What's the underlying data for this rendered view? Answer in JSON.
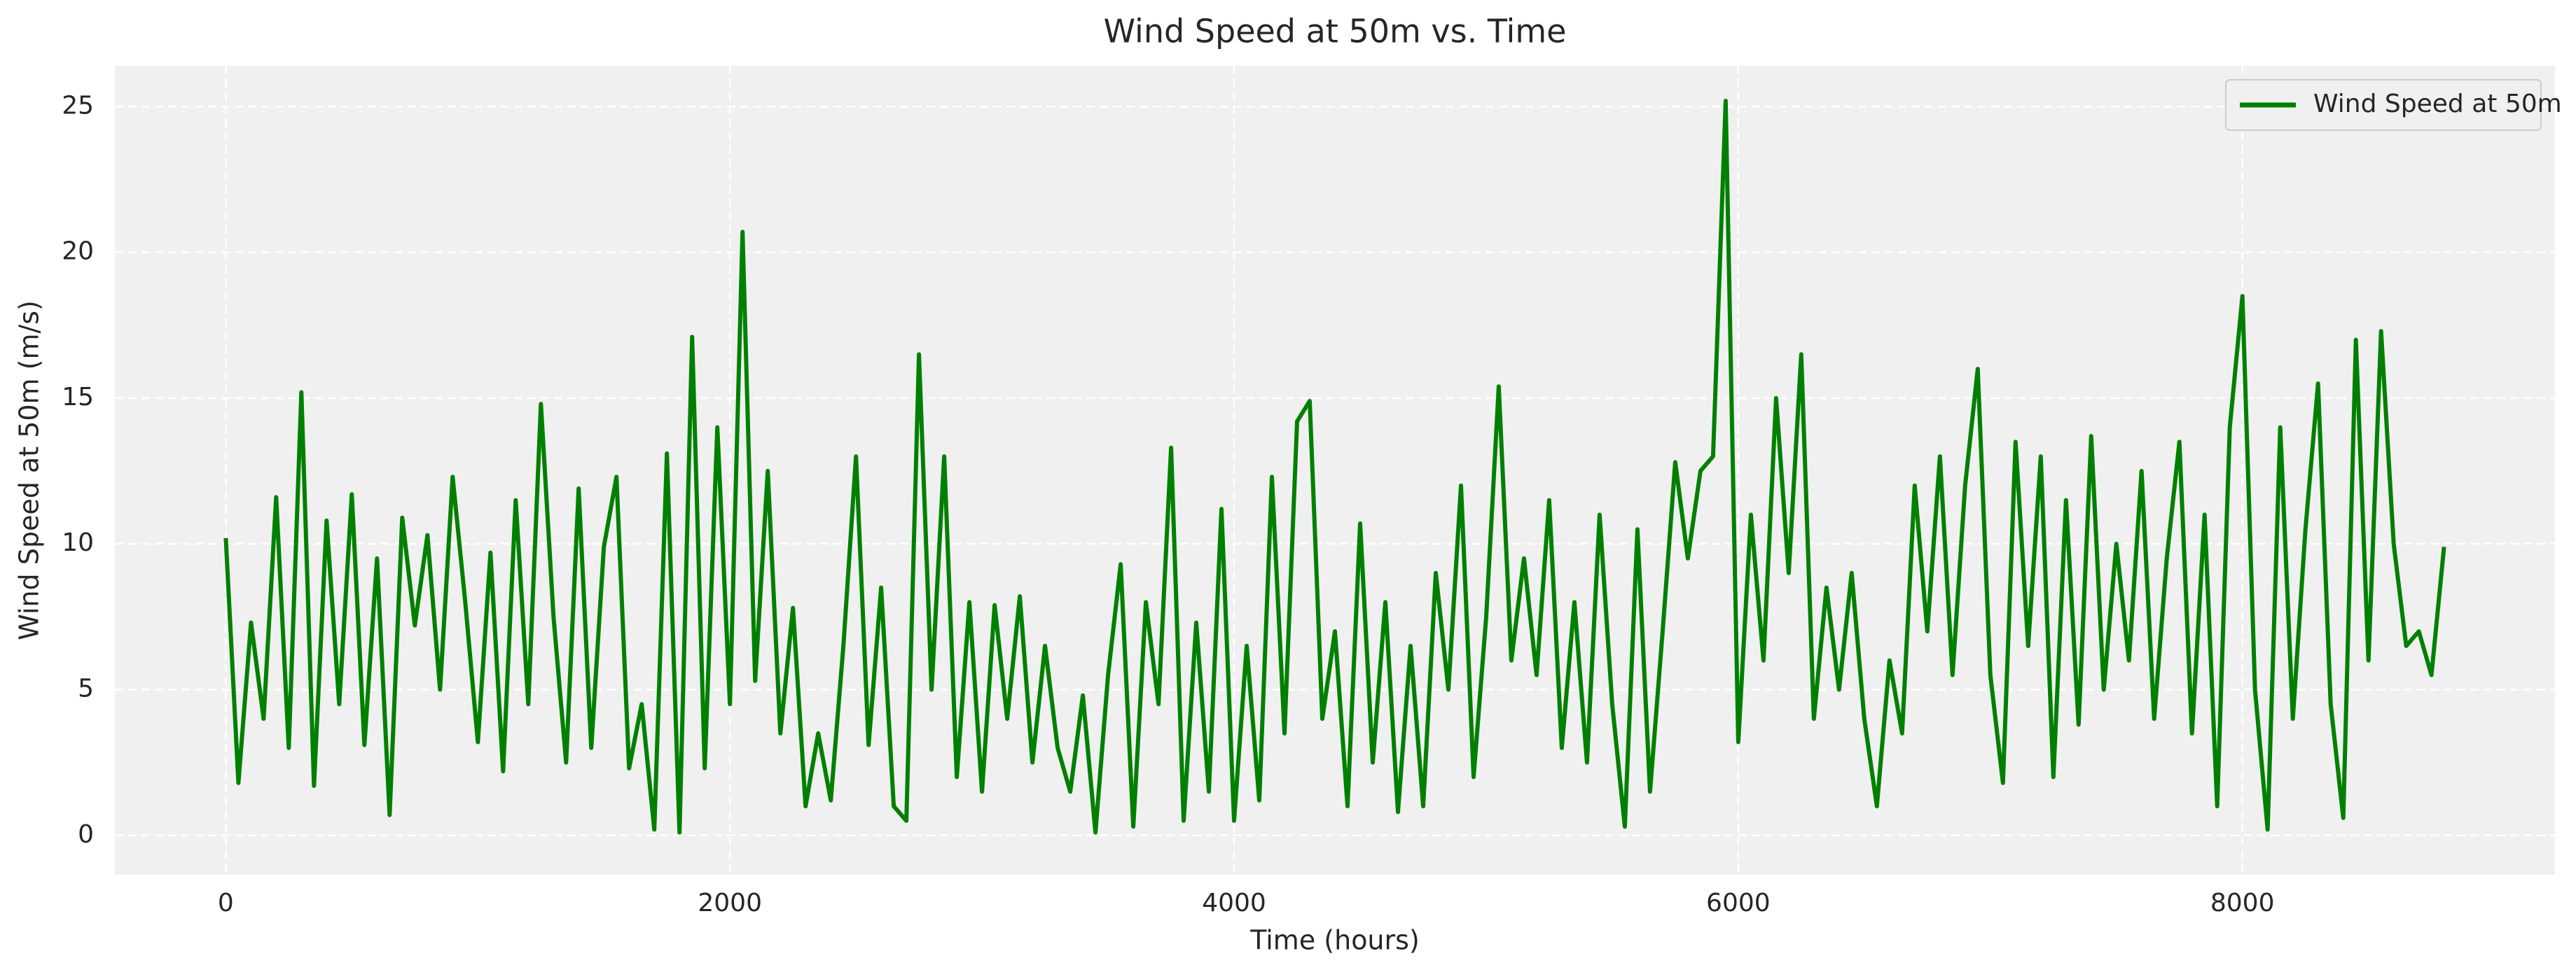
{
  "chart_data": {
    "type": "line",
    "title": "Wind Speed at 50m vs. Time",
    "xlabel": "Time (hours)",
    "ylabel": "Wind Speed at 50m (m/s)",
    "x": [
      0,
      50,
      100,
      150,
      200,
      250,
      300,
      350,
      400,
      450,
      500,
      550,
      600,
      650,
      700,
      750,
      800,
      850,
      900,
      950,
      1000,
      1050,
      1100,
      1150,
      1200,
      1250,
      1300,
      1350,
      1400,
      1450,
      1500,
      1550,
      1600,
      1650,
      1700,
      1750,
      1800,
      1850,
      1900,
      1950,
      2000,
      2050,
      2100,
      2150,
      2200,
      2250,
      2300,
      2350,
      2400,
      2450,
      2500,
      2550,
      2600,
      2650,
      2700,
      2750,
      2800,
      2850,
      2900,
      2950,
      3000,
      3050,
      3100,
      3150,
      3200,
      3250,
      3300,
      3350,
      3400,
      3450,
      3500,
      3550,
      3600,
      3650,
      3700,
      3750,
      3800,
      3850,
      3900,
      3950,
      4000,
      4050,
      4100,
      4150,
      4200,
      4250,
      4300,
      4350,
      4400,
      4450,
      4500,
      4550,
      4600,
      4650,
      4700,
      4750,
      4800,
      4850,
      4900,
      4950,
      5000,
      5050,
      5100,
      5150,
      5200,
      5250,
      5300,
      5350,
      5400,
      5450,
      5500,
      5550,
      5600,
      5650,
      5700,
      5750,
      5800,
      5850,
      5900,
      5950,
      6000,
      6050,
      6100,
      6150,
      6200,
      6250,
      6300,
      6350,
      6400,
      6450,
      6500,
      6550,
      6600,
      6650,
      6700,
      6750,
      6800,
      6850,
      6900,
      6950,
      7000,
      7050,
      7100,
      7150,
      7200,
      7250,
      7300,
      7350,
      7400,
      7450,
      7500,
      7550,
      7600,
      7650,
      7700,
      7750,
      7800,
      7850,
      7900,
      7950,
      8000,
      8050,
      8100,
      8150,
      8200,
      8250,
      8300,
      8350,
      8400,
      8450,
      8500,
      8550,
      8600,
      8650,
      8700,
      8750,
      8800
    ],
    "series": [
      {
        "name": "Wind Speed at 50m",
        "color": "#008000",
        "values": [
          10.2,
          1.8,
          7.3,
          4.0,
          11.6,
          3.0,
          15.2,
          1.7,
          10.8,
          4.5,
          11.7,
          3.1,
          9.5,
          0.7,
          10.9,
          7.2,
          10.3,
          5.0,
          12.3,
          8.0,
          3.2,
          9.7,
          2.2,
          11.5,
          4.5,
          14.8,
          7.5,
          2.5,
          11.9,
          3.0,
          9.9,
          12.3,
          2.3,
          4.5,
          0.2,
          13.1,
          0.1,
          17.1,
          2.3,
          14.0,
          4.5,
          20.7,
          5.3,
          12.5,
          3.5,
          7.8,
          1.0,
          3.5,
          1.2,
          6.5,
          13.0,
          3.1,
          8.5,
          1.0,
          0.5,
          16.5,
          5.0,
          13.0,
          2.0,
          8.0,
          1.5,
          7.9,
          4.0,
          8.2,
          2.5,
          6.5,
          3.0,
          1.5,
          4.8,
          0.1,
          5.5,
          9.3,
          0.3,
          8.0,
          4.5,
          13.3,
          0.5,
          7.3,
          1.5,
          11.2,
          0.5,
          6.5,
          1.2,
          12.3,
          3.5,
          14.2,
          14.9,
          4.0,
          7.0,
          1.0,
          10.7,
          2.5,
          8.0,
          0.8,
          6.5,
          1.0,
          9.0,
          5.0,
          12.0,
          2.0,
          7.5,
          15.4,
          6.0,
          9.5,
          5.5,
          11.5,
          3.0,
          8.0,
          2.5,
          11.0,
          4.5,
          0.3,
          10.5,
          1.5,
          7.0,
          12.8,
          9.5,
          12.5,
          13.0,
          25.2,
          3.2,
          11.0,
          6.0,
          15.0,
          9.0,
          16.5,
          4.0,
          8.5,
          5.0,
          9.0,
          4.0,
          1.0,
          6.0,
          3.5,
          12.0,
          7.0,
          13.0,
          5.5,
          12.0,
          16.0,
          5.5,
          1.8,
          13.5,
          6.5,
          13.0,
          2.0,
          11.5,
          3.8,
          13.7,
          5.0,
          10.0,
          6.0,
          12.5,
          4.0,
          9.5,
          13.5,
          3.5,
          11.0,
          1.0,
          14.0,
          18.5,
          5.0,
          0.2,
          14.0,
          4.0,
          10.5,
          15.5,
          4.5,
          0.6,
          17.0,
          6.0,
          17.3,
          10.0,
          6.5,
          7.0,
          5.5,
          9.9
        ]
      }
    ],
    "xlim": [
      -440,
      9240
    ],
    "ylim": [
      -1.35,
      26.4
    ],
    "xticks": [
      0,
      2000,
      4000,
      6000,
      8000
    ],
    "yticks": [
      0,
      5,
      10,
      15,
      20,
      25
    ],
    "grid": true,
    "legend": "upper right"
  }
}
